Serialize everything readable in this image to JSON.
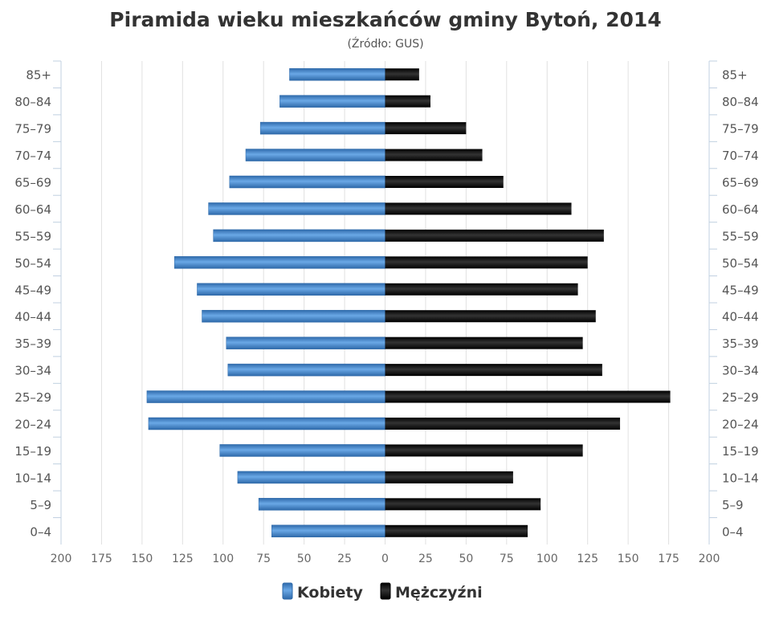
{
  "chart_data": {
    "type": "bar",
    "orientation": "horizontal-pyramid",
    "title": "Piramida wieku mieszkańców gminy Bytoń, 2014",
    "subtitle": "(Źródło: GUS)",
    "categories": [
      "85+",
      "80-84",
      "75-79",
      "70-74",
      "65-69",
      "60-64",
      "55-59",
      "50-54",
      "45-49",
      "40-44",
      "35-39",
      "30-34",
      "25-29",
      "20-24",
      "15-19",
      "10-14",
      "5-9",
      "0-4"
    ],
    "series": [
      {
        "name": "Kobiety",
        "side": "left",
        "color": "#3f7fc4",
        "values": [
          59,
          65,
          77,
          86,
          96,
          109,
          106,
          130,
          116,
          113,
          98,
          97,
          147,
          146,
          102,
          91,
          78,
          70
        ]
      },
      {
        "name": "Mężczyźni",
        "side": "right",
        "color": "#111111",
        "values": [
          21,
          28,
          50,
          60,
          73,
          115,
          135,
          125,
          119,
          130,
          122,
          134,
          176,
          145,
          122,
          79,
          96,
          88
        ]
      }
    ],
    "xlim": [
      -200,
      200
    ],
    "x_ticks": [
      200,
      175,
      150,
      125,
      100,
      75,
      50,
      25,
      0,
      25,
      50,
      75,
      100,
      125,
      150,
      175,
      200
    ],
    "grid": true,
    "legend_position": "bottom-center"
  }
}
